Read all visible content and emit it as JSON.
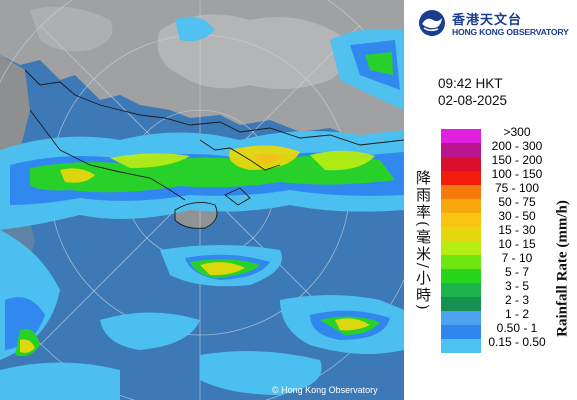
{
  "header": {
    "org_name_cn": "香港天文台",
    "org_name_en": "HONG KONG OBSERVATORY"
  },
  "timestamp": {
    "time": "09:42 HKT",
    "date": "02-08-2025"
  },
  "legend": {
    "unit_label_cn": "降雨率(毫米/小時)",
    "unit_label_en": "Rainfall Rate (mm/h)",
    "entries": [
      {
        "label": ">300",
        "color": "#e01fe0"
      },
      {
        "label": "200 - 300",
        "color": "#b7168f"
      },
      {
        "label": "150 - 200",
        "color": "#d90f2b"
      },
      {
        "label": "100 - 150",
        "color": "#f21b0c"
      },
      {
        "label": "75 - 100",
        "color": "#f47a0b"
      },
      {
        "label": "50 - 75",
        "color": "#f6a70a"
      },
      {
        "label": "30 - 50",
        "color": "#f9c511"
      },
      {
        "label": "15 - 30",
        "color": "#e6d80c"
      },
      {
        "label": "10 - 15",
        "color": "#b6ed14"
      },
      {
        "label": "7 - 10",
        "color": "#6ee60f"
      },
      {
        "label": "5 - 7",
        "color": "#27d51d"
      },
      {
        "label": "3 - 5",
        "color": "#1db54b"
      },
      {
        "label": "2 - 3",
        "color": "#149151"
      },
      {
        "label": "1 - 2",
        "color": "#4da3f0"
      },
      {
        "label": "0.50 - 1",
        "color": "#2f86ee"
      },
      {
        "label": "0.15 - 0.50",
        "color": "#4cc3f3"
      }
    ]
  },
  "map": {
    "copyright": "© Hong Kong Observatory",
    "sea_color": "#3d79b6",
    "land_color": "#a8a8a8"
  }
}
